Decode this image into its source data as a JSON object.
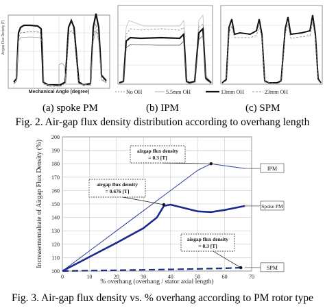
{
  "top_figure": {
    "panels": [
      {
        "caption": "(a) spoke PM",
        "ylabel": "Airgap Flux Density (T)",
        "xlabel": "Mechanical Angle (degree)"
      },
      {
        "caption": "(b) IPM"
      },
      {
        "caption": "(c) SPM"
      }
    ],
    "legend": [
      "No OH",
      "5.5mm OH",
      "13mm OH",
      "23mm OH"
    ],
    "figure_caption": "Fig. 2. Air-gap flux density distribution according to overhang length"
  },
  "chart_data": {
    "type": "line",
    "title": "",
    "xlabel": "% overhang (overhang / stator axial length)",
    "ylabel": "Increasementalrate of Airgap Flux Density (%)",
    "xlim": [
      0,
      70
    ],
    "ylim": [
      100,
      200
    ],
    "xticks": [
      0,
      10,
      20,
      30,
      40,
      50,
      60,
      70
    ],
    "yticks": [
      100,
      110,
      120,
      130,
      140,
      150,
      160,
      170,
      180,
      190,
      200
    ],
    "grid": true,
    "series": [
      {
        "name": "IPM",
        "color": "#2b3f9e",
        "stroke": "thin",
        "x": [
          0,
          10,
          20,
          30,
          40,
          50,
          55,
          60,
          67.5
        ],
        "y": [
          100,
          115,
          130,
          145,
          160,
          175,
          180,
          178.5,
          176.5
        ]
      },
      {
        "name": "Spoke PM",
        "color": "#1a2a8c",
        "stroke": "thick",
        "x": [
          0,
          10,
          20,
          30,
          35,
          37.5,
          40,
          45,
          50,
          55,
          60,
          67.5
        ],
        "y": [
          100,
          110.5,
          121,
          132,
          140,
          148.5,
          149.5,
          147,
          144.5,
          144,
          145.5,
          148.5
        ]
      },
      {
        "name": "SPM",
        "color": "#1a2a8c",
        "stroke": "dashed",
        "x": [
          0,
          10,
          20,
          30,
          40,
          50,
          60,
          67.5
        ],
        "y": [
          100,
          100.3,
          100.6,
          100.9,
          101.2,
          101.6,
          102.1,
          102.6
        ]
      }
    ],
    "annotations": [
      {
        "lines": [
          "airgap flux density",
          "= 0.3 [T]"
        ],
        "target_series": "IPM"
      },
      {
        "lines": [
          "airgap flux density",
          "= 0.676 [T]"
        ],
        "target_series": "Spoke PM"
      },
      {
        "lines": [
          "airgap flux density",
          "= 0.3 [T]"
        ],
        "target_series": "SPM"
      }
    ],
    "figure_caption": "Fig. 3. Air-gap flux density vs. % overhang according to PM rotor type"
  }
}
